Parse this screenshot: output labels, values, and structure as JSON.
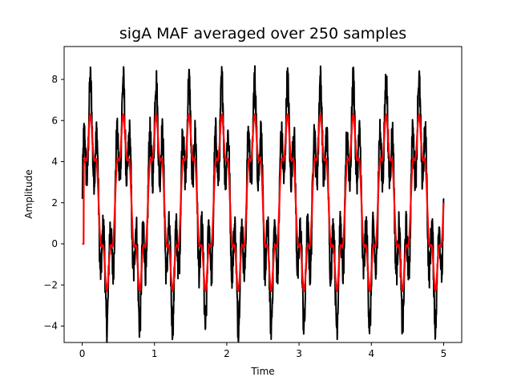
{
  "chart_data": {
    "type": "line",
    "title": "sigA MAF averaged over 250 samples",
    "xlabel": "Time",
    "ylabel": "Amplitude",
    "xlim": [
      -0.25,
      5.25
    ],
    "ylim": [
      -4.8,
      9.6
    ],
    "xticks": [
      "0",
      "1",
      "2",
      "3",
      "4",
      "5"
    ],
    "yticks": [
      "−4",
      "−2",
      "0",
      "2",
      "4",
      "6",
      "8"
    ],
    "grid": false,
    "legend": "none",
    "series": [
      {
        "color": "#000000",
        "fundamental_hz": 2.2,
        "fundamental_amplitude": 4,
        "harmonic_hz": 11,
        "harmonic_amplitude": 2,
        "offset": 2,
        "noise": 0.8,
        "x_range": [
          0,
          5
        ]
      },
      {
        "color": "#ff0000",
        "fundamental_hz": 2.2,
        "fundamental_amplitude": 3.6,
        "harmonic_hz": 11,
        "harmonic_amplitude": 0.7,
        "offset": 2,
        "x_range": [
          0,
          5
        ],
        "initial_value": 0,
        "initial_until": 0.02
      }
    ]
  }
}
